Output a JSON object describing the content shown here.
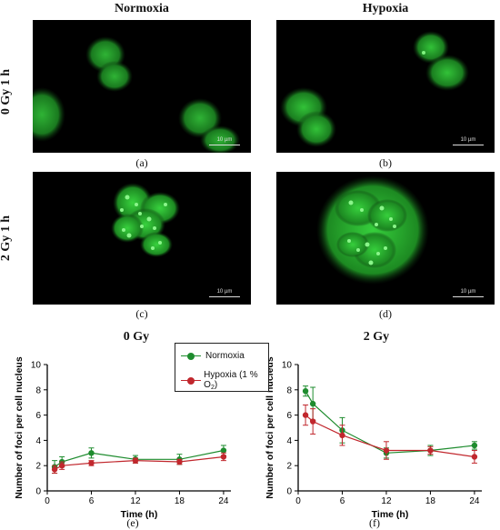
{
  "columns": [
    "Normoxia",
    "Hypoxia"
  ],
  "rows": [
    "0 Gy 1 h",
    "2 Gy 1 h"
  ],
  "scale_bar_label": "10 µm",
  "panel_labels": [
    "(a)",
    "(b)",
    "(c)",
    "(d)",
    "(e)",
    "(f)"
  ],
  "legend": {
    "normoxia": "Normoxia",
    "hypoxia_prefix": "Hypoxia (1 % O",
    "hypoxia_sub": "2",
    "hypoxia_suffix": ")"
  },
  "colors": {
    "normoxia": "#1e8c2e",
    "hypoxia": "#c1272d",
    "fluorescence": "#33d43a"
  },
  "chart_data": [
    {
      "type": "line",
      "title": "0 Gy",
      "xlabel": "Time (h)",
      "ylabel": "Number of foci per cell nucleus",
      "xlim": [
        0,
        25
      ],
      "ylim": [
        0,
        10
      ],
      "xticks": [
        0,
        6,
        12,
        18,
        24
      ],
      "yticks": [
        0,
        2,
        4,
        6,
        8,
        10
      ],
      "series": [
        {
          "name": "Normoxia",
          "x": [
            1,
            2,
            6,
            12,
            18,
            24
          ],
          "y": [
            1.9,
            2.3,
            3.0,
            2.5,
            2.5,
            3.2
          ],
          "err": [
            0.5,
            0.4,
            0.4,
            0.3,
            0.4,
            0.4
          ]
        },
        {
          "name": "Hypoxia (1 % O2)",
          "x": [
            1,
            2,
            6,
            12,
            18,
            24
          ],
          "y": [
            1.7,
            2.0,
            2.2,
            2.4,
            2.3,
            2.7
          ],
          "err": [
            0.3,
            0.3,
            0.2,
            0.2,
            0.2,
            0.3
          ]
        }
      ]
    },
    {
      "type": "line",
      "title": "2 Gy",
      "xlabel": "Time (h)",
      "ylabel": "Number of foci per cell nucleus",
      "xlim": [
        0,
        25
      ],
      "ylim": [
        0,
        10
      ],
      "xticks": [
        0,
        6,
        12,
        18,
        24
      ],
      "yticks": [
        0,
        2,
        4,
        6,
        8,
        10
      ],
      "series": [
        {
          "name": "Normoxia",
          "x": [
            1,
            2,
            6,
            12,
            18,
            24
          ],
          "y": [
            7.9,
            6.9,
            4.8,
            3.0,
            3.2,
            3.6
          ],
          "err": [
            0.4,
            1.3,
            1.0,
            0.4,
            0.4,
            0.3
          ]
        },
        {
          "name": "Hypoxia (1 % O2)",
          "x": [
            1,
            2,
            6,
            12,
            18,
            24
          ],
          "y": [
            6.0,
            5.5,
            4.4,
            3.2,
            3.2,
            2.7
          ],
          "err": [
            0.8,
            1.0,
            0.8,
            0.7,
            0.3,
            0.5
          ]
        }
      ]
    }
  ]
}
